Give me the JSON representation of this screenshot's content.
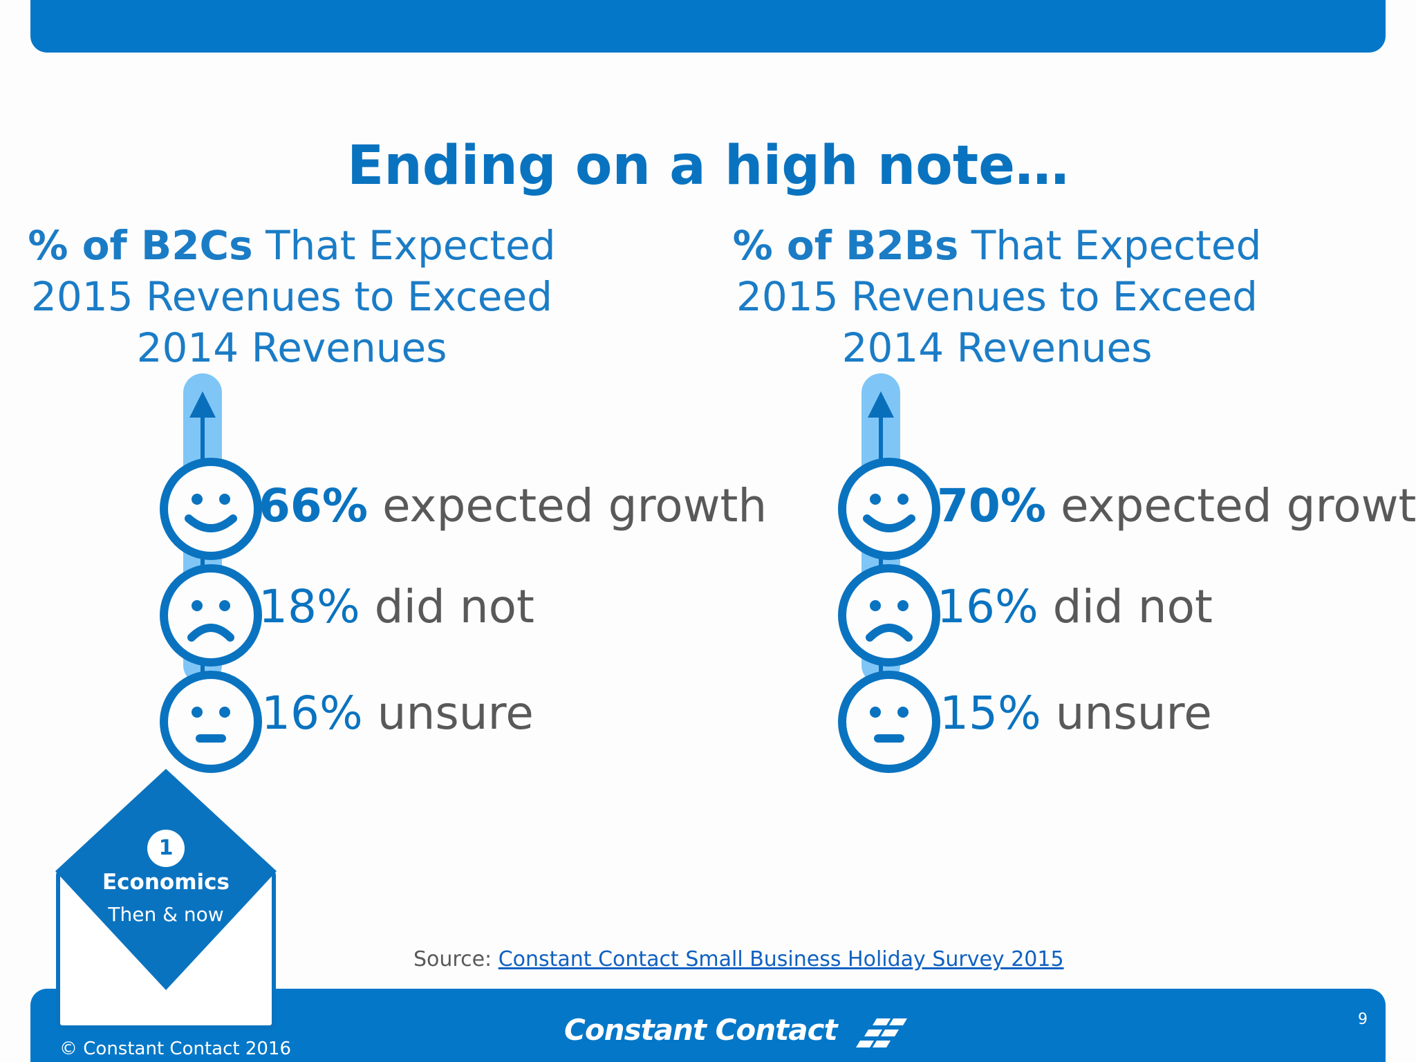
{
  "slide": {
    "title": "Ending on a high note…",
    "page_number": "9"
  },
  "left": {
    "heading_bold": "% of B2Cs",
    "heading_rest": " That Expected",
    "heading_line2": "2015 Revenues to Exceed",
    "heading_line3": "2014 Revenues",
    "stats": [
      {
        "face": "smile-icon",
        "value": "66%",
        "label": " expected growth"
      },
      {
        "face": "frown-icon",
        "value": "18%",
        "label": " did not"
      },
      {
        "face": "neutral-icon",
        "value": "16%",
        "label": " unsure"
      }
    ]
  },
  "right": {
    "heading_bold": "% of B2Bs",
    "heading_rest": " That Expected",
    "heading_line2": "2015 Revenues to Exceed",
    "heading_line3": "2014 Revenues",
    "stats": [
      {
        "face": "smile-icon",
        "value": "70%",
        "label": " expected growth"
      },
      {
        "face": "frown-icon",
        "value": "16%",
        "label": " did not"
      },
      {
        "face": "neutral-icon",
        "value": "15%",
        "label": " unsure"
      }
    ]
  },
  "source": {
    "prefix": "Source: ",
    "link_text": "Constant Contact Small Business Holiday Survey 2015"
  },
  "badge": {
    "number": "1",
    "title": "Economics",
    "subtitle": "Then & now"
  },
  "footer": {
    "logo_text": "Constant Contact",
    "copyright": "© Constant Contact 2016"
  },
  "colors": {
    "primary_blue": "#0477c8",
    "light_blue": "#7fc6f7",
    "text_gray": "#595959"
  }
}
